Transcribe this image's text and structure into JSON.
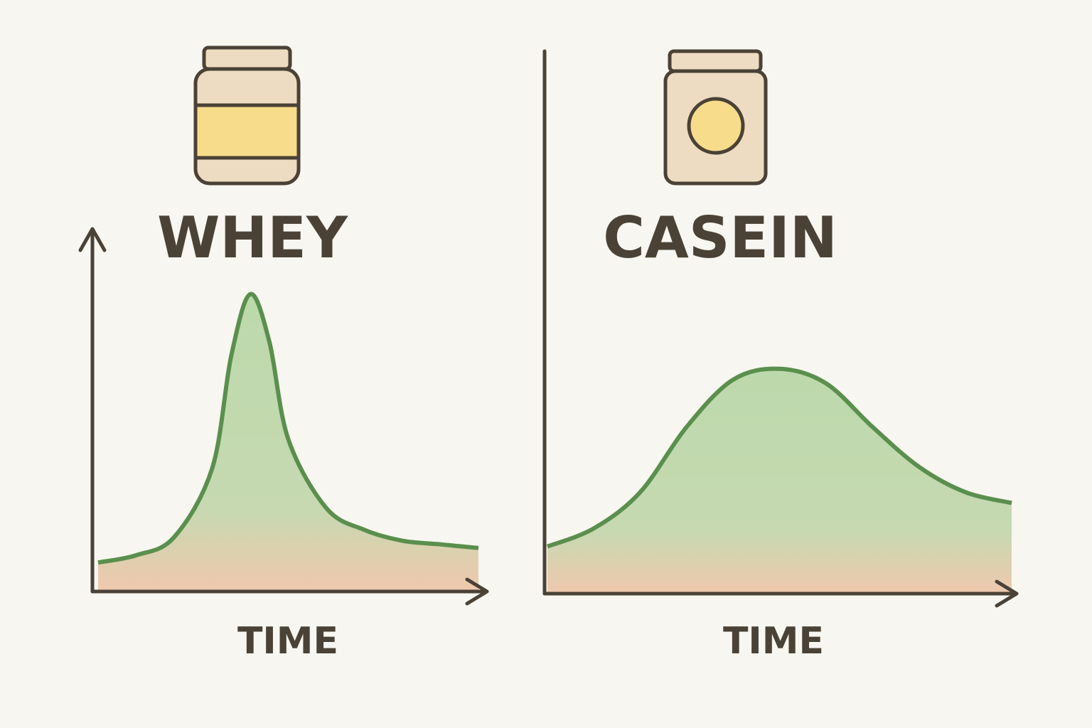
{
  "chart_data": [
    {
      "type": "area",
      "title": "WHEY",
      "x_label": "TIME",
      "x": [
        0,
        1,
        2,
        3,
        3.5,
        4,
        4.5,
        5,
        6,
        7,
        8,
        9,
        10
      ],
      "values": [
        8,
        10,
        15,
        34,
        65,
        82,
        69,
        42,
        23,
        17,
        14,
        13,
        12
      ],
      "xlim": [
        0,
        10
      ],
      "ylim": [
        0,
        100
      ],
      "color": "#5a8f4e"
    },
    {
      "type": "area",
      "title": "CASEIN",
      "x_label": "TIME",
      "x": [
        0,
        1,
        2,
        3,
        4,
        5,
        6,
        7,
        8,
        9,
        10
      ],
      "values": [
        13,
        18,
        28,
        46,
        59,
        62,
        58,
        46,
        35,
        28,
        25
      ],
      "xlim": [
        0,
        10
      ],
      "ylim": [
        0,
        100
      ],
      "color": "#5a8f4e"
    }
  ]
}
